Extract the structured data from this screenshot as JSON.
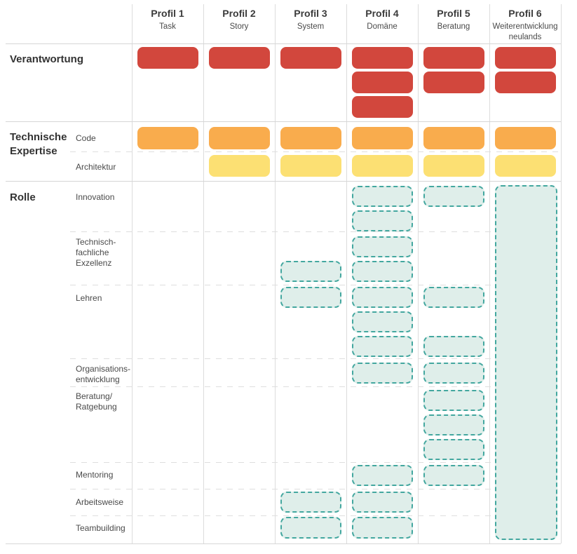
{
  "diagram": {
    "profiles": [
      {
        "title": "Profil 1",
        "subtitle": "Task"
      },
      {
        "title": "Profil 2",
        "subtitle": "Story"
      },
      {
        "title": "Profil 3",
        "subtitle": "System"
      },
      {
        "title": "Profil 4",
        "subtitle": "Domäne"
      },
      {
        "title": "Profil 5",
        "subtitle": "Beratung"
      },
      {
        "title": "Profil 6",
        "subtitle": "Weiterentwicklung neulands"
      }
    ],
    "sections": {
      "verantwortung": {
        "label": "Verantwortung"
      },
      "expertise": {
        "label": "Technische\nExpertise"
      },
      "rolle": {
        "label": "Rolle"
      }
    },
    "rows": [
      {
        "id": "verantwortung",
        "section": "verantwortung",
        "label": "",
        "type": "red",
        "slots": [
          [
            0
          ],
          [
            0
          ],
          [
            0
          ],
          [
            0,
            1,
            2
          ],
          [
            0,
            1
          ],
          [
            0,
            1
          ]
        ]
      },
      {
        "id": "code",
        "section": "expertise",
        "label": "Code",
        "type": "orange",
        "slots": [
          [
            0
          ],
          [
            0
          ],
          [
            0
          ],
          [
            0
          ],
          [
            0
          ],
          [
            0
          ]
        ]
      },
      {
        "id": "architektur",
        "section": "expertise",
        "label": "Architektur",
        "type": "yellow",
        "slots": [
          [],
          [
            0
          ],
          [
            0
          ],
          [
            0
          ],
          [
            0
          ],
          [
            0
          ]
        ]
      },
      {
        "id": "innovation",
        "section": "rolle",
        "label": "Innovation",
        "type": "teal",
        "slots": [
          [],
          [],
          [],
          [
            0,
            1
          ],
          [
            0
          ],
          []
        ]
      },
      {
        "id": "exzellenz",
        "section": "rolle",
        "label": "Technisch-\nfachliche\nExzellenz",
        "type": "teal",
        "slots": [
          [],
          [],
          [
            1
          ],
          [
            0,
            1
          ],
          [],
          []
        ]
      },
      {
        "id": "lehren",
        "section": "rolle",
        "label": "Lehren",
        "type": "teal",
        "slots": [
          [],
          [],
          [
            0
          ],
          [
            0,
            1,
            2
          ],
          [
            0,
            2
          ],
          []
        ]
      },
      {
        "id": "organisationsentwicklung",
        "section": "rolle",
        "label": "Organisations-\nentwicklung",
        "type": "teal",
        "slots": [
          [],
          [],
          [],
          [
            0
          ],
          [
            0
          ],
          []
        ]
      },
      {
        "id": "beratung",
        "section": "rolle",
        "label": "Beratung/\nRatgebung",
        "type": "teal",
        "slots": [
          [],
          [],
          [],
          [],
          [
            0,
            1,
            2
          ],
          []
        ]
      },
      {
        "id": "mentoring",
        "section": "rolle",
        "label": "Mentoring",
        "type": "teal",
        "slots": [
          [],
          [],
          [],
          [
            0
          ],
          [
            0
          ],
          []
        ]
      },
      {
        "id": "arbeitsweise",
        "section": "rolle",
        "label": "Arbeitsweise",
        "type": "teal",
        "slots": [
          [],
          [],
          [
            0
          ],
          [
            0
          ],
          [],
          []
        ]
      },
      {
        "id": "teambuilding",
        "section": "rolle",
        "label": "Teambuilding",
        "type": "teal",
        "slots": [
          [],
          [],
          [
            0
          ],
          [
            0
          ],
          [],
          []
        ]
      }
    ],
    "profil6_rolle_fullspan": true,
    "colors": {
      "red": "#d2473d",
      "orange": "#f9ac4d",
      "yellow": "#fce073",
      "teal_fill": "#dfeeea",
      "teal_border": "#43a79f",
      "grid": "#d6d6d6",
      "text": "#3b3b3b"
    }
  }
}
